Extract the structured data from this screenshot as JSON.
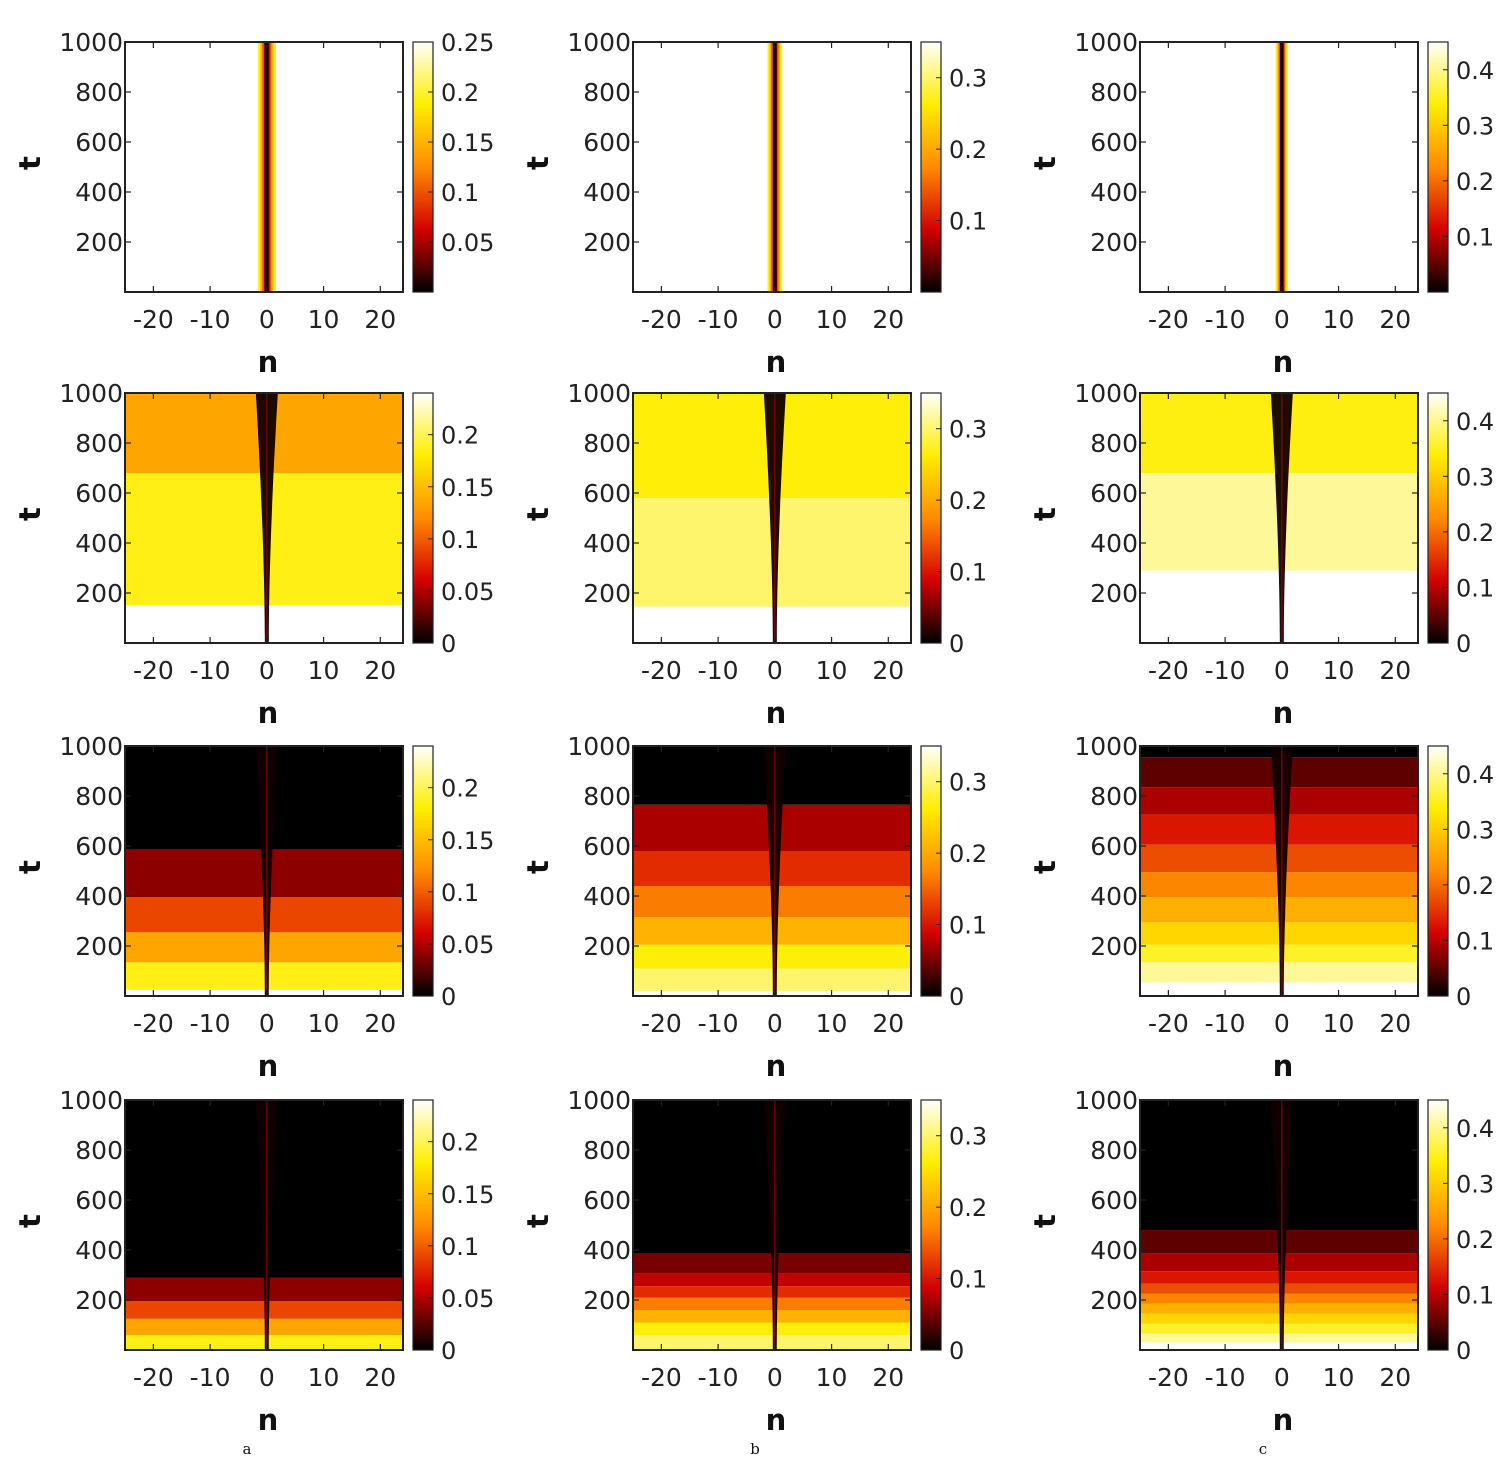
{
  "chart_data": {
    "type": "heatmap",
    "layout": {
      "rows": 4,
      "columns": 3
    },
    "column_captions": [
      "a",
      "b",
      "c"
    ],
    "colormap": {
      "name": "hot",
      "stops": [
        "#000000",
        "#d40000",
        "#ff8c00",
        "#ffee00",
        "#ffffff"
      ]
    },
    "x_axis": {
      "label": "n",
      "range": [
        -25,
        24
      ],
      "ticks": [
        -20,
        -10,
        0,
        10,
        20
      ]
    },
    "y_axis": {
      "label": "t",
      "range": [
        0,
        1000
      ],
      "ticks": [
        200,
        400,
        600,
        800,
        1000
      ]
    },
    "panels": [
      {
        "id": "r1-a",
        "row": 1,
        "column": "a",
        "pattern": "stationary",
        "colorbar": {
          "range": [
            0,
            0.25
          ],
          "ticks": [
            0.05,
            0.1,
            0.15,
            0.2,
            0.25
          ],
          "labels": [
            "0.05",
            "0.1",
            "0.15",
            "0.2",
            "0.25"
          ]
        },
        "background": 0.25,
        "core_half_width": 1.6
      },
      {
        "id": "r1-b",
        "row": 1,
        "column": "b",
        "pattern": "stationary",
        "colorbar": {
          "range": [
            0,
            0.35
          ],
          "ticks": [
            0.1,
            0.2,
            0.3
          ],
          "labels": [
            "0.1",
            "0.2",
            "0.3"
          ]
        },
        "background": 0.35,
        "core_half_width": 1.3
      },
      {
        "id": "r1-c",
        "row": 1,
        "column": "c",
        "pattern": "stationary",
        "colorbar": {
          "range": [
            0,
            0.45
          ],
          "ticks": [
            0.1,
            0.2,
            0.3,
            0.4
          ],
          "labels": [
            "0.1",
            "0.2",
            "0.3",
            "0.4"
          ]
        },
        "background": 0.45,
        "core_half_width": 1.1
      },
      {
        "id": "r2-a",
        "row": 2,
        "column": "a",
        "pattern": "decay",
        "colorbar": {
          "range": [
            0,
            0.24
          ],
          "ticks": [
            0,
            0.05,
            0.1,
            0.15,
            0.2
          ],
          "labels": [
            "0",
            "0.05",
            "0.1",
            "0.15",
            "0.2"
          ]
        },
        "bands": [
          {
            "t_from": 0,
            "t_to": 150,
            "value": 0.24
          },
          {
            "t_from": 150,
            "t_to": 680,
            "value": 0.185
          },
          {
            "t_from": 680,
            "t_to": 1000,
            "value": 0.135
          }
        ]
      },
      {
        "id": "r2-b",
        "row": 2,
        "column": "b",
        "pattern": "decay",
        "colorbar": {
          "range": [
            0,
            0.35
          ],
          "ticks": [
            0,
            0.1,
            0.2,
            0.3
          ],
          "labels": [
            "0",
            "0.1",
            "0.2",
            "0.3"
          ]
        },
        "bands": [
          {
            "t_from": 0,
            "t_to": 145,
            "value": 0.35
          },
          {
            "t_from": 145,
            "t_to": 580,
            "value": 0.3
          },
          {
            "t_from": 580,
            "t_to": 1000,
            "value": 0.265
          }
        ]
      },
      {
        "id": "r2-c",
        "row": 2,
        "column": "c",
        "pattern": "decay",
        "colorbar": {
          "range": [
            0,
            0.45
          ],
          "ticks": [
            0,
            0.1,
            0.2,
            0.3,
            0.4
          ],
          "labels": [
            "0",
            "0.1",
            "0.2",
            "0.3",
            "0.4"
          ]
        },
        "bands": [
          {
            "t_from": 0,
            "t_to": 290,
            "value": 0.45
          },
          {
            "t_from": 290,
            "t_to": 680,
            "value": 0.405
          },
          {
            "t_from": 680,
            "t_to": 1000,
            "value": 0.345
          }
        ]
      },
      {
        "id": "r3-a",
        "row": 3,
        "column": "a",
        "pattern": "decay",
        "colorbar": {
          "range": [
            0,
            0.24
          ],
          "ticks": [
            0,
            0.05,
            0.1,
            0.15,
            0.2
          ],
          "labels": [
            "0",
            "0.05",
            "0.1",
            "0.15",
            "0.2"
          ]
        },
        "bands": [
          {
            "t_from": 0,
            "t_to": 25,
            "value": 0.24
          },
          {
            "t_from": 25,
            "t_to": 135,
            "value": 0.185
          },
          {
            "t_from": 135,
            "t_to": 255,
            "value": 0.135
          },
          {
            "t_from": 255,
            "t_to": 395,
            "value": 0.09
          },
          {
            "t_from": 395,
            "t_to": 585,
            "value": 0.04
          },
          {
            "t_from": 585,
            "t_to": 1000,
            "value": 0.0
          }
        ]
      },
      {
        "id": "r3-b",
        "row": 3,
        "column": "b",
        "pattern": "decay",
        "colorbar": {
          "range": [
            0,
            0.35
          ],
          "ticks": [
            0,
            0.1,
            0.2,
            0.3
          ],
          "labels": [
            "0",
            "0.1",
            "0.2",
            "0.3"
          ]
        },
        "bands": [
          {
            "t_from": 0,
            "t_to": 20,
            "value": 0.35
          },
          {
            "t_from": 20,
            "t_to": 110,
            "value": 0.3
          },
          {
            "t_from": 110,
            "t_to": 205,
            "value": 0.265
          },
          {
            "t_from": 205,
            "t_to": 315,
            "value": 0.21
          },
          {
            "t_from": 315,
            "t_to": 440,
            "value": 0.165
          },
          {
            "t_from": 440,
            "t_to": 580,
            "value": 0.115
          },
          {
            "t_from": 580,
            "t_to": 765,
            "value": 0.07
          },
          {
            "t_from": 765,
            "t_to": 1000,
            "value": 0.0
          }
        ]
      },
      {
        "id": "r3-c",
        "row": 3,
        "column": "c",
        "pattern": "decay",
        "colorbar": {
          "range": [
            0,
            0.45
          ],
          "ticks": [
            0,
            0.1,
            0.2,
            0.3,
            0.4
          ],
          "labels": [
            "0",
            "0.1",
            "0.2",
            "0.3",
            "0.4"
          ]
        },
        "bands": [
          {
            "t_from": 0,
            "t_to": 55,
            "value": 0.45
          },
          {
            "t_from": 55,
            "t_to": 135,
            "value": 0.405
          },
          {
            "t_from": 135,
            "t_to": 205,
            "value": 0.355
          },
          {
            "t_from": 205,
            "t_to": 295,
            "value": 0.31
          },
          {
            "t_from": 295,
            "t_to": 395,
            "value": 0.265
          },
          {
            "t_from": 395,
            "t_to": 495,
            "value": 0.22
          },
          {
            "t_from": 495,
            "t_to": 605,
            "value": 0.175
          },
          {
            "t_from": 605,
            "t_to": 725,
            "value": 0.13
          },
          {
            "t_from": 725,
            "t_to": 835,
            "value": 0.09
          },
          {
            "t_from": 835,
            "t_to": 955,
            "value": 0.05
          },
          {
            "t_from": 955,
            "t_to": 1000,
            "value": 0.0
          }
        ]
      },
      {
        "id": "r4-a",
        "row": 4,
        "column": "a",
        "pattern": "decay",
        "colorbar": {
          "range": [
            0,
            0.24
          ],
          "ticks": [
            0,
            0.05,
            0.1,
            0.15,
            0.2
          ],
          "labels": [
            "0",
            "0.05",
            "0.1",
            "0.15",
            "0.2"
          ]
        },
        "bands": [
          {
            "t_from": 0,
            "t_to": 60,
            "value": 0.185
          },
          {
            "t_from": 60,
            "t_to": 125,
            "value": 0.135
          },
          {
            "t_from": 125,
            "t_to": 195,
            "value": 0.09
          },
          {
            "t_from": 195,
            "t_to": 290,
            "value": 0.04
          },
          {
            "t_from": 290,
            "t_to": 1000,
            "value": 0.0
          }
        ]
      },
      {
        "id": "r4-b",
        "row": 4,
        "column": "b",
        "pattern": "decay",
        "colorbar": {
          "range": [
            0,
            0.35
          ],
          "ticks": [
            0,
            0.1,
            0.2,
            0.3
          ],
          "labels": [
            "0",
            "0.1",
            "0.2",
            "0.3"
          ]
        },
        "bands": [
          {
            "t_from": 0,
            "t_to": 60,
            "value": 0.3
          },
          {
            "t_from": 60,
            "t_to": 110,
            "value": 0.265
          },
          {
            "t_from": 110,
            "t_to": 160,
            "value": 0.21
          },
          {
            "t_from": 160,
            "t_to": 210,
            "value": 0.165
          },
          {
            "t_from": 210,
            "t_to": 255,
            "value": 0.115
          },
          {
            "t_from": 255,
            "t_to": 305,
            "value": 0.08
          },
          {
            "t_from": 305,
            "t_to": 385,
            "value": 0.05
          },
          {
            "t_from": 385,
            "t_to": 1000,
            "value": 0.0
          }
        ]
      },
      {
        "id": "r4-c",
        "row": 4,
        "column": "c",
        "pattern": "decay",
        "colorbar": {
          "range": [
            0,
            0.45
          ],
          "ticks": [
            0,
            0.1,
            0.2,
            0.3,
            0.4
          ],
          "labels": [
            "0",
            "0.1",
            "0.2",
            "0.3",
            "0.4"
          ]
        },
        "bands": [
          {
            "t_from": 0,
            "t_to": 30,
            "value": 0.45
          },
          {
            "t_from": 30,
            "t_to": 65,
            "value": 0.405
          },
          {
            "t_from": 65,
            "t_to": 105,
            "value": 0.355
          },
          {
            "t_from": 105,
            "t_to": 145,
            "value": 0.31
          },
          {
            "t_from": 145,
            "t_to": 185,
            "value": 0.265
          },
          {
            "t_from": 185,
            "t_to": 225,
            "value": 0.22
          },
          {
            "t_from": 225,
            "t_to": 265,
            "value": 0.175
          },
          {
            "t_from": 265,
            "t_to": 315,
            "value": 0.13
          },
          {
            "t_from": 315,
            "t_to": 385,
            "value": 0.09
          },
          {
            "t_from": 385,
            "t_to": 480,
            "value": 0.05
          },
          {
            "t_from": 480,
            "t_to": 1000,
            "value": 0.0
          }
        ]
      }
    ]
  }
}
